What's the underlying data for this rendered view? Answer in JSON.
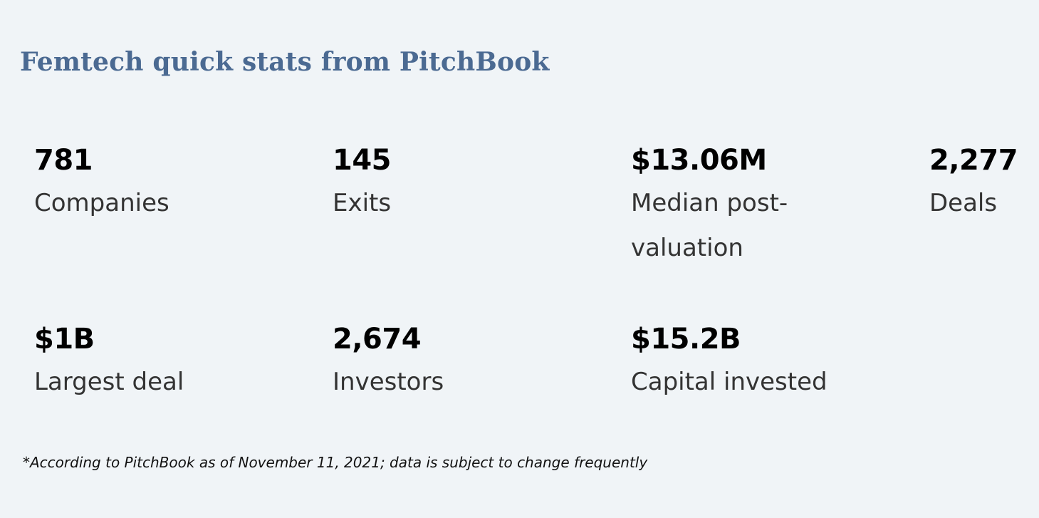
{
  "title": "Femtech quick stats from PitchBook",
  "stats": [
    {
      "value": "781",
      "label": "Companies"
    },
    {
      "value": "145",
      "label": "Exits"
    },
    {
      "value": "$13.06M",
      "label": "Median post-valuation"
    },
    {
      "value": "2,277",
      "label": "Deals"
    },
    {
      "value": "$1B",
      "label": "Largest deal"
    },
    {
      "value": "2,674",
      "label": "Investors"
    },
    {
      "value": "$15.2B",
      "label": "Capital invested"
    }
  ],
  "footnote": "*According to PitchBook as of November 11, 2021; data is subject to change frequently"
}
